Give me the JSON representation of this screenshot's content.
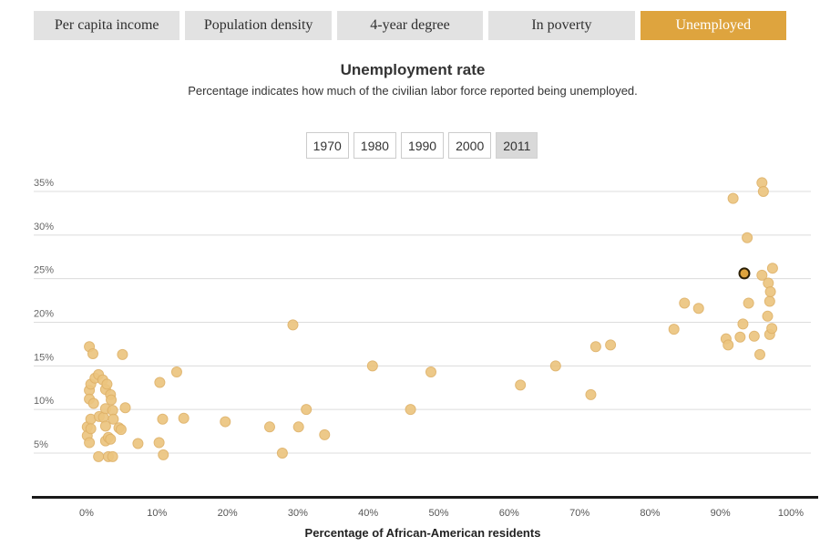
{
  "tabs": {
    "items": [
      "Per capita income",
      "Population density",
      "4-year degree",
      "In poverty",
      "Unemployed"
    ],
    "active": "Unemployed"
  },
  "years": {
    "options": [
      "1970",
      "1980",
      "1990",
      "2000",
      "2011"
    ],
    "selected": "2011"
  },
  "colors": {
    "accent_gold": "#dea43e",
    "tab_inactive_bg": "#e2e2e2",
    "dot_fill": "#ecc57f",
    "dot_stroke": "#dfb269",
    "highlight_fill": "#dea43e",
    "highlight_ring": "#2b1f06",
    "grid": "#dcdcdc",
    "axis": "#1a1a1a",
    "tick_text": "#666666"
  },
  "chart_data": {
    "type": "scatter",
    "title": "Unemployment rate",
    "subtitle": "Percentage indicates how much of the civilian labor force reported being unemployed.",
    "xlabel": "Percentage of African-American residents",
    "ylabel": "",
    "xlim": [
      0,
      100
    ],
    "ylim": [
      0,
      37
    ],
    "x_ticks": [
      0,
      10,
      20,
      30,
      40,
      50,
      60,
      70,
      80,
      90,
      100
    ],
    "y_ticks": [
      35,
      30,
      25,
      20,
      15,
      10,
      5
    ],
    "tick_suffix": "%",
    "grid": true,
    "legend": "none",
    "points": [
      [
        0.1,
        8.0
      ],
      [
        0.1,
        7.0
      ],
      [
        0.4,
        17.2
      ],
      [
        0.4,
        12.2
      ],
      [
        0.4,
        11.2
      ],
      [
        0.4,
        6.2
      ],
      [
        0.6,
        12.9
      ],
      [
        0.6,
        8.9
      ],
      [
        0.6,
        7.8
      ],
      [
        0.9,
        16.4
      ],
      [
        1.0,
        10.7
      ],
      [
        1.2,
        13.6
      ],
      [
        1.7,
        14.0
      ],
      [
        1.7,
        4.6
      ],
      [
        1.8,
        9.2
      ],
      [
        2.3,
        13.4
      ],
      [
        2.4,
        9.1
      ],
      [
        2.7,
        12.3
      ],
      [
        2.7,
        10.1
      ],
      [
        2.7,
        8.1
      ],
      [
        2.7,
        6.4
      ],
      [
        2.9,
        12.9
      ],
      [
        3.1,
        6.8
      ],
      [
        3.1,
        4.6
      ],
      [
        3.4,
        11.7
      ],
      [
        3.4,
        6.6
      ],
      [
        3.5,
        11.1
      ],
      [
        3.7,
        9.9
      ],
      [
        3.7,
        4.6
      ],
      [
        3.8,
        8.9
      ],
      [
        4.6,
        7.9
      ],
      [
        4.9,
        7.7
      ],
      [
        5.1,
        16.3
      ],
      [
        5.5,
        10.2
      ],
      [
        7.3,
        6.1
      ],
      [
        10.3,
        6.2
      ],
      [
        10.4,
        13.1
      ],
      [
        10.8,
        8.9
      ],
      [
        10.9,
        4.8
      ],
      [
        12.8,
        14.3
      ],
      [
        13.8,
        9.0
      ],
      [
        19.7,
        8.6
      ],
      [
        26.0,
        8.0
      ],
      [
        27.8,
        5.0
      ],
      [
        29.3,
        19.7
      ],
      [
        30.1,
        8.0
      ],
      [
        31.2,
        10.0
      ],
      [
        33.8,
        7.1
      ],
      [
        40.6,
        15.0
      ],
      [
        46.0,
        10.0
      ],
      [
        48.9,
        14.3
      ],
      [
        61.6,
        12.8
      ],
      [
        66.6,
        15.0
      ],
      [
        71.6,
        11.7
      ],
      [
        72.3,
        17.2
      ],
      [
        74.4,
        17.4
      ],
      [
        83.4,
        19.2
      ],
      [
        84.9,
        22.2
      ],
      [
        86.9,
        21.6
      ],
      [
        90.8,
        18.1
      ],
      [
        91.1,
        17.4
      ],
      [
        91.8,
        34.2
      ],
      [
        92.8,
        18.3
      ],
      [
        93.2,
        19.8
      ],
      [
        93.8,
        29.7
      ],
      [
        94.0,
        22.2
      ],
      [
        94.8,
        18.4
      ],
      [
        95.6,
        16.3
      ],
      [
        95.9,
        36.0
      ],
      [
        95.9,
        25.4
      ],
      [
        96.1,
        35.0
      ],
      [
        96.7,
        20.7
      ],
      [
        96.8,
        24.5
      ],
      [
        97.0,
        22.4
      ],
      [
        97.0,
        18.6
      ],
      [
        97.1,
        23.5
      ],
      [
        97.3,
        19.3
      ],
      [
        97.4,
        26.2
      ]
    ],
    "highlighted_point": [
      93.4,
      25.6
    ]
  }
}
